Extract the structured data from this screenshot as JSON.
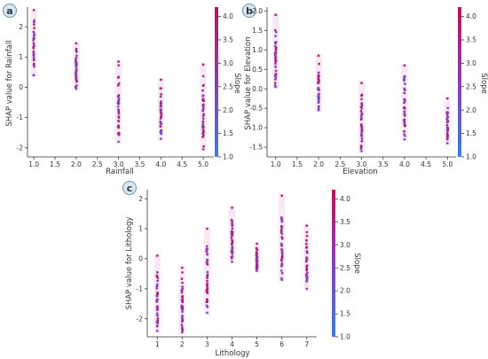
{
  "colorbar": {
    "label": "Slope",
    "range": [
      1.0,
      4.2
    ],
    "ticks": [
      "1.0",
      "1.5",
      "2.0",
      "2.5",
      "3.0",
      "3.5",
      "4.0"
    ],
    "colors": {
      "low": "#3b7dde",
      "mid": "#8a3fb2",
      "high": "#b8145a"
    }
  },
  "chart_data": [
    {
      "panel": "a",
      "type": "scatter",
      "title": "",
      "xlabel": "Rainfall",
      "ylabel": "SHAP value for Rainfall",
      "xlim": [
        0.85,
        5.25
      ],
      "ylim": [
        -2.3,
        2.65
      ],
      "xticks": [
        "1.0",
        "1.5",
        "2.0",
        "2.5",
        "3.0",
        "3.5",
        "4.0",
        "4.5",
        "5.0"
      ],
      "yticks": [
        "-2",
        "-1",
        "0",
        "1",
        "2"
      ],
      "clusters": [
        {
          "x": 1.0,
          "ymin": 0.4,
          "ymax": 2.55
        },
        {
          "x": 2.0,
          "ymin": -0.05,
          "ymax": 1.45
        },
        {
          "x": 3.0,
          "ymin": -1.8,
          "ymax": 0.85
        },
        {
          "x": 4.0,
          "ymin": -1.7,
          "ymax": 0.25
        },
        {
          "x": 5.0,
          "ymin": -2.05,
          "ymax": 0.75
        }
      ]
    },
    {
      "panel": "b",
      "type": "scatter",
      "title": "",
      "xlabel": "Elevation",
      "ylabel": "SHAP value for Elevation",
      "xlim": [
        0.8,
        5.2
      ],
      "ylim": [
        -1.75,
        2.1
      ],
      "xticks": [
        "1.0",
        "1.5",
        "2.0",
        "2.5",
        "3.0",
        "3.5",
        "4.0",
        "4.5",
        "5.0"
      ],
      "yticks": [
        "-1.5",
        "-1.0",
        "-0.5",
        "0.0",
        "0.5",
        "1.0",
        "1.5",
        "2.0"
      ],
      "clusters": [
        {
          "x": 1.0,
          "ymin": 0.05,
          "ymax": 1.9
        },
        {
          "x": 2.0,
          "ymin": -0.55,
          "ymax": 0.85
        },
        {
          "x": 3.0,
          "ymin": -1.6,
          "ymax": 0.15
        },
        {
          "x": 4.0,
          "ymin": -1.3,
          "ymax": 0.6
        },
        {
          "x": 5.0,
          "ymin": -1.4,
          "ymax": -0.25
        }
      ]
    },
    {
      "panel": "c",
      "type": "scatter",
      "title": "",
      "xlabel": "Lithology",
      "ylabel": "SHAP value for Lithology",
      "xlim": [
        0.6,
        7.4
      ],
      "ylim": [
        -2.6,
        2.3
      ],
      "xticks": [
        "1",
        "2",
        "3",
        "4",
        "5",
        "6",
        "7"
      ],
      "yticks": [
        "-2",
        "-1",
        "0",
        "1",
        "2"
      ],
      "clusters": [
        {
          "x": 1,
          "ymin": -2.4,
          "ymax": 0.1
        },
        {
          "x": 2,
          "ymin": -2.45,
          "ymax": -0.3
        },
        {
          "x": 3,
          "ymin": -1.8,
          "ymax": 1.0
        },
        {
          "x": 4,
          "ymin": -0.1,
          "ymax": 1.7
        },
        {
          "x": 5,
          "ymin": -0.4,
          "ymax": 0.5
        },
        {
          "x": 6,
          "ymin": -0.7,
          "ymax": 2.1
        },
        {
          "x": 7,
          "ymin": -1.0,
          "ymax": 1.1
        }
      ]
    }
  ]
}
